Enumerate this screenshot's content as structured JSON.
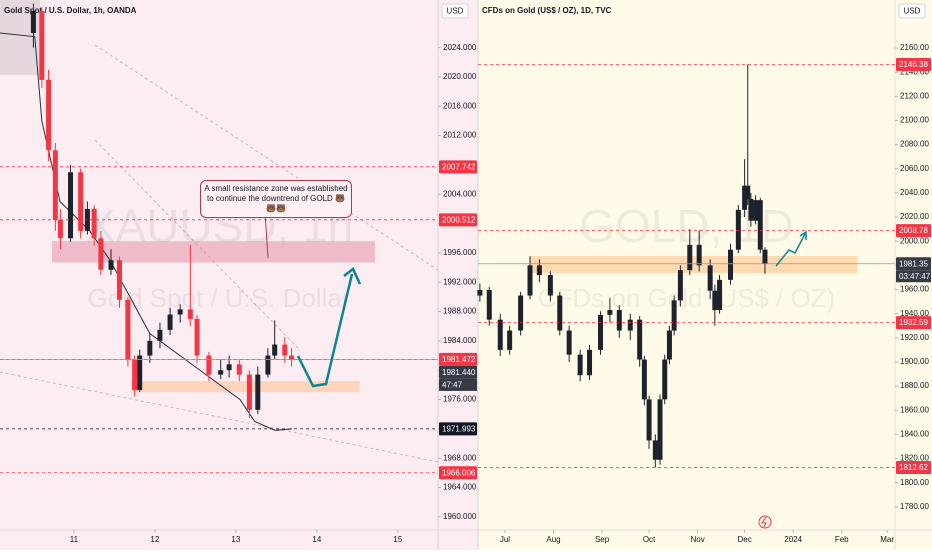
{
  "chart_data": [
    {
      "type": "candlestick",
      "title": "Gold Spot / U.S. Dollar, 1h, OANDA",
      "currency": "USD",
      "watermark": [
        "XAUUSD, 1h",
        "Gold Spot / U.S. Dollar"
      ],
      "annotation": "A small resistance zone was established to continue the downtrend of GOLD 🐻🐻🐻",
      "background": "#fcedf2",
      "up_color": "#1e222d",
      "down_color": "#f23645",
      "xlim": [
        -21.9,
        107.9
      ],
      "ylim": [
        1958.2,
        2030.5
      ],
      "xticks": [
        {
          "value": 0,
          "label": "11"
        },
        {
          "value": 24,
          "label": "12"
        },
        {
          "value": 48,
          "label": "13"
        },
        {
          "value": 72,
          "label": "14"
        },
        {
          "value": 96,
          "label": "15"
        }
      ],
      "yticks": [
        {
          "value": 1960,
          "label": "1960.000"
        },
        {
          "value": 1964,
          "label": "1964.000"
        },
        {
          "value": 1968,
          "label": "1968.000"
        },
        {
          "value": 1972,
          "label": "1972.000"
        },
        {
          "value": 1976,
          "label": "1976.000"
        },
        {
          "value": 1980,
          "label": "1980.000"
        },
        {
          "value": 1984,
          "label": "1984.000"
        },
        {
          "value": 1988,
          "label": "1988.000"
        },
        {
          "value": 1992,
          "label": "1992.000"
        },
        {
          "value": 1996,
          "label": "1996.000"
        },
        {
          "value": 2000,
          "label": "2000.000"
        },
        {
          "value": 2004,
          "label": "2004.000"
        },
        {
          "value": 2008,
          "label": "2008.000"
        },
        {
          "value": 2012,
          "label": "2012.000"
        },
        {
          "value": 2016,
          "label": "2016.000"
        },
        {
          "value": 2020,
          "label": "2020.000"
        },
        {
          "value": 2024,
          "label": "2024.000"
        }
      ],
      "x": [
        -12,
        -9.5,
        -7.5,
        -5.5,
        -4,
        -1,
        2,
        4,
        6,
        8,
        11,
        13.5,
        16,
        18,
        19.5,
        22.5,
        25.5,
        28.5,
        31.5,
        34.5,
        36.5,
        40,
        43.5,
        46,
        49,
        52,
        54.5,
        57.5,
        59.5,
        62.5,
        64.5
      ],
      "open": [
        2026,
        2029,
        2019.6,
        2010,
        2000.5,
        1998,
        2007,
        1999,
        2002,
        1998,
        1993.7,
        1995,
        1989.6,
        1981.4,
        1977.3,
        1982,
        1984,
        1985.5,
        1987.6,
        1988.3,
        1987,
        1982,
        1979.4,
        1980,
        1980.8,
        1979.4,
        1974.6,
        1979.4,
        1982,
        1983.5,
        1982
      ],
      "high": [
        2030,
        2029.5,
        2021,
        2011,
        2002,
        2008,
        2007.5,
        2003,
        2002.5,
        1999,
        1996.5,
        1995.5,
        1990,
        1982,
        1982.8,
        1985,
        1986.5,
        1988.5,
        1989,
        1997.1,
        1987.5,
        1982.5,
        1981.5,
        1982,
        1981.5,
        1980,
        1980.5,
        1983,
        1986.8,
        1984.5,
        1983
      ],
      "low": [
        2024,
        2018.5,
        2008.5,
        1999,
        1996.5,
        1997.5,
        1998,
        1998.5,
        1997,
        1993,
        1993,
        1988.5,
        1980.5,
        1976.4,
        1977,
        1981,
        1983,
        1984.8,
        1986.5,
        1986,
        1981,
        1978.5,
        1978.8,
        1979,
        1978.5,
        1973.5,
        1974,
        1979,
        1981.5,
        1981,
        1980.5
      ],
      "close": [
        2029,
        2019.6,
        2010,
        2000.5,
        1998,
        2007,
        1999,
        2002,
        1998,
        1993.7,
        1995,
        1989.6,
        1981.4,
        1977.3,
        1982,
        1984,
        1985.5,
        1987.6,
        1988.3,
        1987,
        1982,
        1979.4,
        1980,
        1980.8,
        1979.4,
        1974.6,
        1979.4,
        1982,
        1983.5,
        1982,
        1981.44
      ],
      "ma": {
        "color": "#2a2e39",
        "x": [
          -21.9,
          -11.6,
          -9.5,
          -4.1,
          4.7,
          10.7,
          16.6,
          22.5,
          31.4,
          40.3,
          49.2,
          53.6,
          59.6,
          64.6
        ],
        "values": [
          2026,
          2025.5,
          2014,
          2003,
          1999,
          1995,
          1990,
          1985,
          1982,
          1979,
          1976,
          1973,
          1971.8,
          1972
        ]
      },
      "zones": [
        {
          "from": 1997.6,
          "to": 1994.7,
          "x_from": -6.5,
          "x_to": 89.2,
          "color": "rgba(226,128,150,0.45)"
        },
        {
          "from": 1978.5,
          "to": 1977.0,
          "x_from": 16.9,
          "x_to": 84.7,
          "color": "rgba(255,196,150,0.6)"
        }
      ],
      "price_lines": [
        {
          "value": 2007.742,
          "label": "2007.742",
          "color": "#f23645"
        },
        {
          "value": 2000.512,
          "label": "2000.512",
          "color": "#f23645"
        },
        {
          "value": 1981.472,
          "label": "1981.472",
          "color": "#f23645"
        },
        {
          "value": 1981.44,
          "label": "1981.440",
          "countdown": "47:47",
          "color": "#363a45"
        },
        {
          "value": 1971.993,
          "label": "1971.993",
          "color": "#131722"
        },
        {
          "value": 1966.006,
          "label": "1966.006",
          "color": "#f23645"
        }
      ]
    },
    {
      "type": "candlestick",
      "title": "CFDs on Gold (US$ / OZ), 1D, TVC",
      "currency": "USD",
      "watermark": [
        "GOLD, 1D",
        "CFDs on Gold (US$ / OZ)"
      ],
      "background": "#fffbe8",
      "up_color": "#1e222d",
      "down_color": "#1e222d",
      "xlim": [
        -17.2,
        249
      ],
      "ylim": [
        1760.8,
        2199.8
      ],
      "xticks": [
        {
          "value": 0,
          "label": "Jul"
        },
        {
          "value": 31,
          "label": "Aug"
        },
        {
          "value": 62,
          "label": "Sep"
        },
        {
          "value": 92,
          "label": "Oct"
        },
        {
          "value": 123,
          "label": "Nov"
        },
        {
          "value": 153,
          "label": "Dec"
        },
        {
          "value": 184,
          "label": "2024"
        },
        {
          "value": 215,
          "label": "Feb"
        },
        {
          "value": 244,
          "label": "Mar"
        }
      ],
      "yticks": [
        {
          "value": 1780,
          "label": "1780.00"
        },
        {
          "value": 1800,
          "label": "1800.00"
        },
        {
          "value": 1820,
          "label": "1820.00"
        },
        {
          "value": 1840,
          "label": "1840.00"
        },
        {
          "value": 1860,
          "label": "1860.00"
        },
        {
          "value": 1880,
          "label": "1880.00"
        },
        {
          "value": 1900,
          "label": "1900.00"
        },
        {
          "value": 1920,
          "label": "1920.00"
        },
        {
          "value": 1940,
          "label": "1940.00"
        },
        {
          "value": 1960,
          "label": "1960.00"
        },
        {
          "value": 1980,
          "label": "1980.00"
        },
        {
          "value": 2000,
          "label": "2000.00"
        },
        {
          "value": 2020,
          "label": "2020.00"
        },
        {
          "value": 2040,
          "label": "2040.00"
        },
        {
          "value": 2060,
          "label": "2060.00"
        },
        {
          "value": 2080,
          "label": "2080.00"
        },
        {
          "value": 2100,
          "label": "2100.00"
        },
        {
          "value": 2120,
          "label": "2120.00"
        },
        {
          "value": 2140,
          "label": "2140.00"
        },
        {
          "value": 2160,
          "label": "2160.00"
        }
      ],
      "x": [
        -16,
        -10,
        -3,
        3,
        10,
        16,
        22,
        29,
        35,
        41,
        48,
        54,
        61,
        67,
        73,
        80,
        86,
        89,
        92,
        96,
        99,
        102,
        105,
        108,
        112,
        118,
        124,
        131,
        134,
        137,
        144,
        149,
        153,
        155,
        157,
        160,
        163,
        166
      ],
      "open": [
        1955,
        1959.6,
        1935,
        1910,
        1926,
        1955,
        1980,
        1972,
        1955,
        1926,
        1906,
        1889,
        1910,
        1939,
        1943,
        1926,
        1935,
        1902,
        1869,
        1835,
        1819,
        1869,
        1902,
        1926,
        1951,
        1976,
        1997,
        1980,
        1959,
        1943,
        1968,
        1993,
        2026,
        2046,
        2035,
        2017,
        2034,
        1993
      ],
      "high": [
        1965,
        1962,
        1940,
        1930,
        1958,
        1987.5,
        1985,
        1975,
        1958,
        1930,
        1910,
        1914,
        1942,
        1953,
        1947,
        1940,
        1938,
        1905,
        1872,
        1840,
        1873,
        1906,
        1930,
        1955,
        1980,
        2010,
        2009,
        1985,
        1964,
        1972,
        1998,
        2030,
        2068,
        2146.38,
        2040,
        2038,
        2036,
        1995
      ],
      "low": [
        1950,
        1930,
        1905,
        1906,
        1922,
        1952,
        1966,
        1950,
        1922,
        1900,
        1884,
        1885,
        1906,
        1933,
        1920,
        1918,
        1896,
        1864,
        1828,
        1812.62,
        1815,
        1865,
        1898,
        1922,
        1946,
        1972,
        1975,
        1952,
        1930,
        1940,
        1964,
        1990,
        2020,
        2030,
        2012,
        2014,
        1990,
        1973
      ],
      "close": [
        1959.6,
        1935,
        1910,
        1926,
        1955,
        1980,
        1972,
        1955,
        1926,
        1906,
        1889,
        1910,
        1939,
        1943,
        1926,
        1935,
        1902,
        1869,
        1835,
        1819,
        1869,
        1902,
        1926,
        1951,
        1976,
        1997,
        1980,
        1959,
        1943,
        1968,
        1993,
        2026,
        2046,
        2035,
        2017,
        2034,
        1993,
        1981.35
      ],
      "zones": [
        {
          "from": 1987.7,
          "to": 1973.7,
          "x_from": 16,
          "x_to": 225,
          "color": "rgba(255,196,140,0.6)"
        }
      ],
      "price_lines": [
        {
          "value": 2146.38,
          "label": "2146.38",
          "color": "#f23645"
        },
        {
          "value": 2008.78,
          "label": "2008.78",
          "color": "#f23645"
        },
        {
          "value": 1981.35,
          "label": "1981.35",
          "countdown": "03:47:47",
          "color": "#363a45"
        },
        {
          "value": 1932.59,
          "label": "1932.59",
          "color": "#f23645"
        },
        {
          "value": 1812.62,
          "label": "1812.62",
          "color": "#f23645"
        }
      ]
    }
  ]
}
